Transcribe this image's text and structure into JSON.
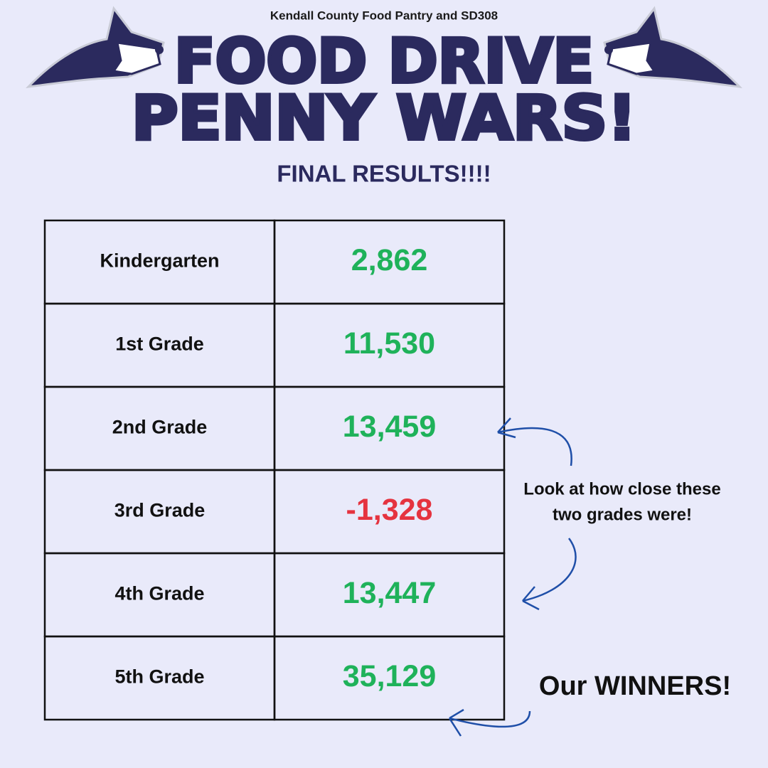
{
  "header": {
    "subtitle": "Kendall County Food Pantry and SD308",
    "title_lines": [
      "FOOD DRIVE",
      "PENNY WARS!"
    ],
    "results_heading": "FINAL RESULTS!!!!"
  },
  "table": {
    "rows": [
      {
        "grade": "Kindergarten",
        "value": "2,862",
        "color": "#1fb25a"
      },
      {
        "grade": "1st Grade",
        "value": "11,530",
        "color": "#1fb25a"
      },
      {
        "grade": "2nd Grade",
        "value": "13,459",
        "color": "#1fb25a"
      },
      {
        "grade": "3rd Grade",
        "value": "-1,328",
        "color": "#e5333f"
      },
      {
        "grade": "4th Grade",
        "value": "13,447",
        "color": "#1fb25a"
      },
      {
        "grade": "5th Grade",
        "value": "35,129",
        "color": "#1fb25a"
      }
    ]
  },
  "annotations": {
    "close_lines": [
      "Look at how close these",
      "two grades were!"
    ],
    "winners": "Our WINNERS!"
  }
}
